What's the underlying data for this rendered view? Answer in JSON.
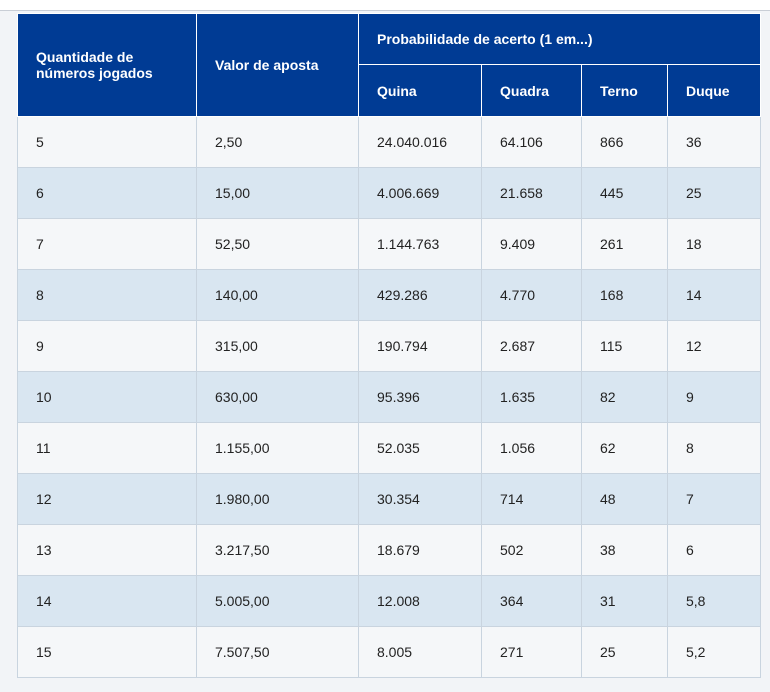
{
  "table": {
    "headers": {
      "quantity": "Quantidade de\nnúmeros jogados",
      "bet_value": "Valor de aposta",
      "probability_group": "Probabilidade de acerto (1 em...)",
      "quina": "Quina",
      "quadra": "Quadra",
      "terno": "Terno",
      "duque": "Duque"
    },
    "rows": [
      {
        "qty": "5",
        "value": "2,50",
        "quina": "24.040.016",
        "quadra": "64.106",
        "terno": "866",
        "duque": "36"
      },
      {
        "qty": "6",
        "value": "15,00",
        "quina": "4.006.669",
        "quadra": "21.658",
        "terno": "445",
        "duque": "25"
      },
      {
        "qty": "7",
        "value": "52,50",
        "quina": "1.144.763",
        "quadra": "9.409",
        "terno": "261",
        "duque": "18"
      },
      {
        "qty": "8",
        "value": "140,00",
        "quina": "429.286",
        "quadra": "4.770",
        "terno": "168",
        "duque": "14"
      },
      {
        "qty": "9",
        "value": "315,00",
        "quina": "190.794",
        "quadra": "2.687",
        "terno": "115",
        "duque": "12"
      },
      {
        "qty": "10",
        "value": "630,00",
        "quina": "95.396",
        "quadra": "1.635",
        "terno": "82",
        "duque": "9"
      },
      {
        "qty": "11",
        "value": "1.155,00",
        "quina": "52.035",
        "quadra": "1.056",
        "terno": "62",
        "duque": "8"
      },
      {
        "qty": "12",
        "value": "1.980,00",
        "quina": "30.354",
        "quadra": "714",
        "terno": "48",
        "duque": "7"
      },
      {
        "qty": "13",
        "value": "3.217,50",
        "quina": "18.679",
        "quadra": "502",
        "terno": "38",
        "duque": "6"
      },
      {
        "qty": "14",
        "value": "5.005,00",
        "quina": "12.008",
        "quadra": "364",
        "terno": "31",
        "duque": "5,8"
      },
      {
        "qty": "15",
        "value": "7.507,50",
        "quina": "8.005",
        "quadra": "271",
        "terno": "25",
        "duque": "5,2"
      }
    ]
  },
  "colors": {
    "header_bg": "#003b94",
    "header_text": "#ffffff",
    "row_light": "#f5f7f9",
    "row_blue": "#d9e6f1",
    "cell_text": "#222222",
    "border": "#c9d4df"
  }
}
